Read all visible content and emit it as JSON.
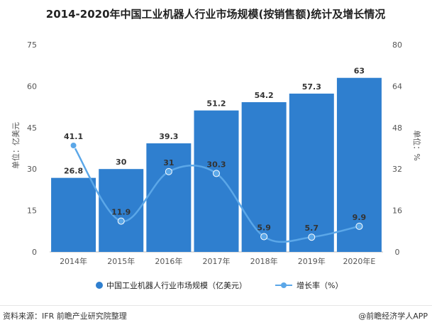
{
  "chart_data": {
    "type": "bar+line",
    "title": "2014-2020年中国工业机器人行业市场规模(按销售额)统计及增长情况",
    "categories": [
      "2014年",
      "2015年",
      "2016年",
      "2017年",
      "2018年",
      "2019年",
      "2020年E"
    ],
    "series": [
      {
        "name": "中国工业机器人行业市场规模（亿美元）",
        "type": "bar",
        "axis": "left",
        "values": [
          26.8,
          30,
          39.3,
          51.2,
          54.2,
          57.3,
          63
        ],
        "color": "#2f7fcf"
      },
      {
        "name": "增长率（%）",
        "type": "line",
        "axis": "right",
        "values": [
          41.1,
          11.9,
          31,
          30.3,
          5.9,
          5.7,
          9.9
        ],
        "color": "#5ba7e8"
      }
    ],
    "ylabel": "单位：亿美元",
    "y2label": "单位：%",
    "ylim": [
      0,
      75
    ],
    "yticks": [
      0,
      15,
      30,
      45,
      60,
      75
    ],
    "y2lim": [
      0,
      80
    ],
    "y2ticks": [
      0,
      16,
      32,
      48,
      64,
      80
    ],
    "legend_position": "bottom",
    "grid": false
  },
  "footer": {
    "source": "资料来源：IFR 前瞻产业研究院整理",
    "brand": "@前瞻经济学人APP"
  }
}
